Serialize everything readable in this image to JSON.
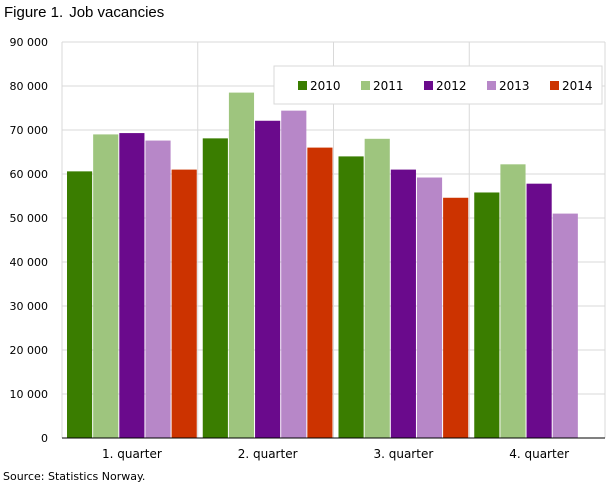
{
  "figure": {
    "number": "Figure 1.",
    "title": "Job vacancies"
  },
  "source": "Source: Statistics Norway.",
  "chart_data": {
    "type": "bar",
    "title": "Job vacancies",
    "xlabel": "",
    "ylabel": "",
    "ylim": [
      0,
      90000
    ],
    "yticks": [
      0,
      10000,
      20000,
      30000,
      40000,
      50000,
      60000,
      70000,
      80000,
      90000
    ],
    "ytick_labels": [
      "0",
      "10 000",
      "20 000",
      "30 000",
      "40 000",
      "50 000",
      "60 000",
      "70 000",
      "80 000",
      "90 000"
    ],
    "grid": true,
    "legend_position": "top-right",
    "categories": [
      "1. quarter",
      "2. quarter",
      "3. quarter",
      "4. quarter"
    ],
    "series": [
      {
        "name": "2010",
        "color": "#3a7d00",
        "values": [
          60600,
          68100,
          64000,
          55800
        ]
      },
      {
        "name": "2011",
        "color": "#9ec57e",
        "values": [
          69000,
          78500,
          68000,
          62200
        ]
      },
      {
        "name": "2012",
        "color": "#6a0a8c",
        "values": [
          69300,
          72100,
          61000,
          57800
        ]
      },
      {
        "name": "2013",
        "color": "#b787c8",
        "values": [
          67600,
          74400,
          59200,
          51000
        ]
      },
      {
        "name": "2014",
        "color": "#cc3300",
        "values": [
          61000,
          66000,
          54600,
          null
        ]
      }
    ]
  }
}
